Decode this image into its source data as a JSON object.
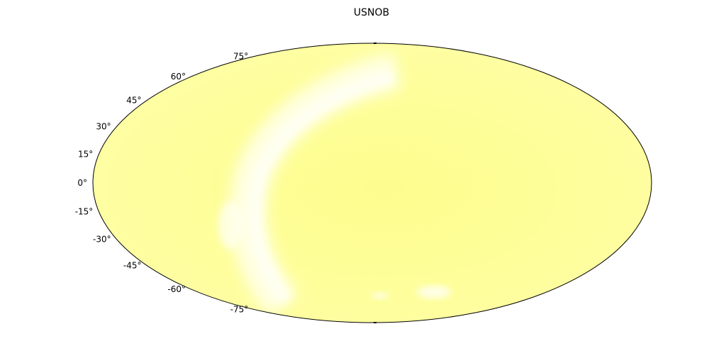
{
  "chart_data": {
    "type": "heatmap",
    "projection": "mollweide",
    "title": "USNOB",
    "colors": {
      "background": "#ffffff",
      "sky_base": "#fefe9e",
      "sky_light": "#fffff0",
      "outline": "#000000"
    },
    "grid": false,
    "dec_ticks": [
      75,
      60,
      45,
      30,
      15,
      0,
      -15,
      -30,
      -45,
      -60,
      -75
    ],
    "dec_tick_labels": [
      "75°",
      "60°",
      "45°",
      "30°",
      "15°",
      "0°",
      "-15°",
      "-30°",
      "-45°",
      "-60°",
      "-75°"
    ]
  }
}
